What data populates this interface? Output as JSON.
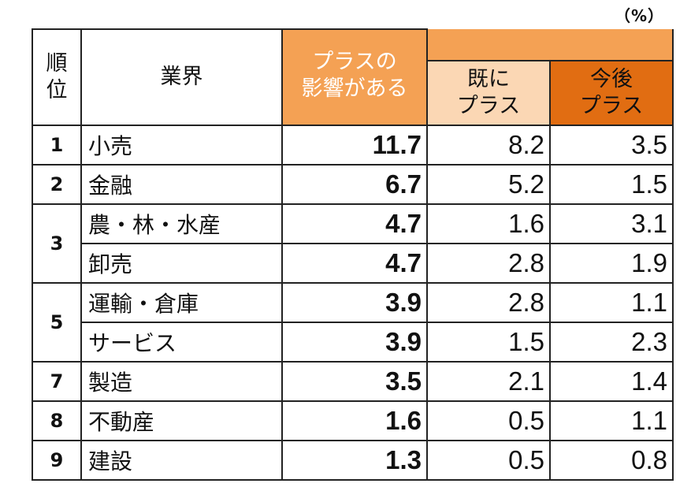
{
  "unit_label": "（%）",
  "headers": {
    "rank": "順\n位",
    "industry": "業界",
    "plus_impact": "プラスの\n影響がある",
    "already_plus": "既に\nプラス",
    "future_plus": "今後\nプラス"
  },
  "colors": {
    "plus_impact_header": "#f4a154",
    "already_plus_header": "#fbd7b4",
    "future_plus_header": "#e16d12"
  },
  "rows": [
    {
      "rank": "1",
      "industry": "小売",
      "plus_impact": "11.7",
      "already_plus": "8.2",
      "future_plus": "3.5"
    },
    {
      "rank": "2",
      "industry": "金融",
      "plus_impact": "6.7",
      "already_plus": "5.2",
      "future_plus": "1.5"
    },
    {
      "rank": "3",
      "industry": "農・林・水産",
      "plus_impact": "4.7",
      "already_plus": "1.6",
      "future_plus": "3.1"
    },
    {
      "rank": "",
      "industry": "卸売",
      "plus_impact": "4.7",
      "already_plus": "2.8",
      "future_plus": "1.9"
    },
    {
      "rank": "5",
      "industry": "運輸・倉庫",
      "plus_impact": "3.9",
      "already_plus": "2.8",
      "future_plus": "1.1"
    },
    {
      "rank": "",
      "industry": "サービス",
      "plus_impact": "3.9",
      "already_plus": "1.5",
      "future_plus": "2.3"
    },
    {
      "rank": "7",
      "industry": "製造",
      "plus_impact": "3.5",
      "already_plus": "2.1",
      "future_plus": "1.4"
    },
    {
      "rank": "8",
      "industry": "不動産",
      "plus_impact": "1.6",
      "already_plus": "0.5",
      "future_plus": "1.1"
    },
    {
      "rank": "9",
      "industry": "建設",
      "plus_impact": "1.3",
      "already_plus": "0.5",
      "future_plus": "0.8"
    }
  ]
}
